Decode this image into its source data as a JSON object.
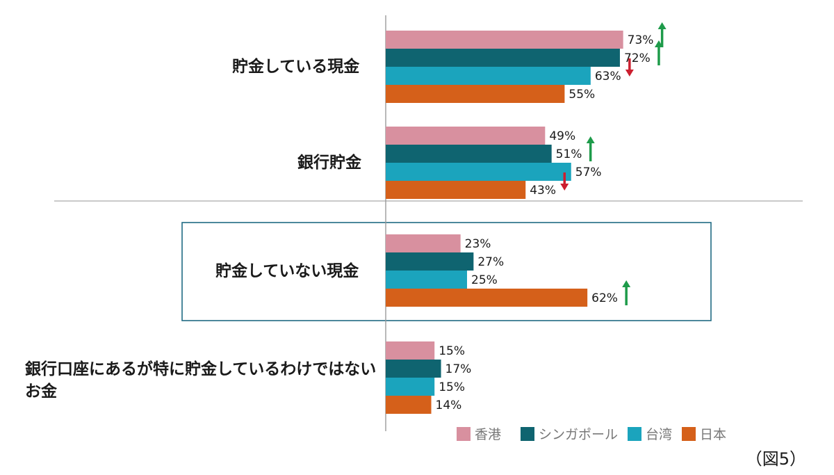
{
  "chart_data": {
    "type": "bar",
    "orientation": "horizontal",
    "categories": [
      "貯金している現金",
      "銀行貯金",
      "貯金していない現金",
      "銀行口座にあるが特に貯金しているわけではないお金"
    ],
    "series": [
      {
        "name": "香港",
        "color": "#d8909f",
        "values": [
          73,
          49,
          23,
          15
        ]
      },
      {
        "name": "シンガポール",
        "color": "#0f6470",
        "values": [
          72,
          51,
          27,
          17
        ]
      },
      {
        "name": "台湾",
        "color": "#1ba4bd",
        "values": [
          63,
          57,
          25,
          15
        ]
      },
      {
        "name": "日本",
        "color": "#d5601a",
        "values": [
          55,
          43,
          62,
          14
        ]
      }
    ],
    "value_suffix": "%",
    "trend_arrows": [
      {
        "category": 0,
        "series": 0,
        "direction": "up"
      },
      {
        "category": 0,
        "series": 1,
        "direction": "up"
      },
      {
        "category": 0,
        "series": 2,
        "direction": "down"
      },
      {
        "category": 1,
        "series": 1,
        "direction": "up"
      },
      {
        "category": 1,
        "series": 3,
        "direction": "down"
      },
      {
        "category": 2,
        "series": 3,
        "direction": "up"
      }
    ],
    "arrow_colors": {
      "up": "#1e9b4a",
      "down": "#cc1f2f"
    },
    "highlighted_category": 2,
    "legend_position": "bottom-right",
    "grid": false,
    "xlim": [
      0,
      100
    ]
  },
  "figure_label": "（図5）"
}
